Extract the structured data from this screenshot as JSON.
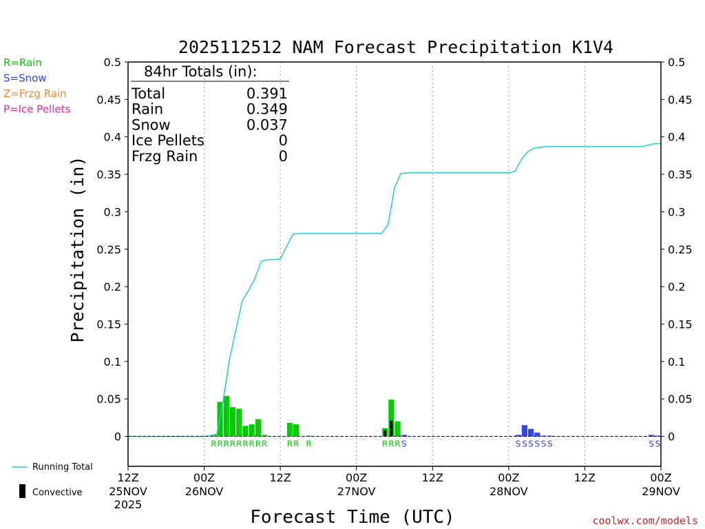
{
  "chart_data": {
    "type": "bar",
    "title": "2025112512 NAM Forecast Precipitation K1V4",
    "xlabel": "Forecast Time (UTC)",
    "ylabel": "Precipitation (in)",
    "ylim": [
      -0.04,
      0.5
    ],
    "xlim_hours": [
      0,
      84
    ],
    "y_ticks": [
      "0",
      "0.05",
      "0.1",
      "0.15",
      "0.2",
      "0.25",
      "0.3",
      "0.35",
      "0.4",
      "0.45",
      "0.5"
    ],
    "x_ticks": [
      {
        "hour": 0,
        "time": "12Z",
        "date": "25NOV",
        "year": "2025"
      },
      {
        "hour": 12,
        "time": "00Z",
        "date": "26NOV",
        "year": ""
      },
      {
        "hour": 24,
        "time": "12Z",
        "date": "",
        "year": ""
      },
      {
        "hour": 36,
        "time": "00Z",
        "date": "27NOV",
        "year": ""
      },
      {
        "hour": 48,
        "time": "12Z",
        "date": "",
        "year": ""
      },
      {
        "hour": 60,
        "time": "00Z",
        "date": "28NOV",
        "year": ""
      },
      {
        "hour": 72,
        "time": "12Z",
        "date": "",
        "year": ""
      },
      {
        "hour": 84,
        "time": "00Z",
        "date": "29NOV",
        "year": ""
      }
    ],
    "legend_types": [
      {
        "label": "R=Rain",
        "color": "#00cc00"
      },
      {
        "label": "S=Snow",
        "color": "#3344ee"
      },
      {
        "label": "Z=Frzg Rain",
        "color": "#ee8833"
      },
      {
        "label": "P=Ice Pellets",
        "color": "#ee2299"
      }
    ],
    "legend_bottom": {
      "running_total": "Running Total",
      "convective": "Convective"
    },
    "totals": {
      "header": "84hr Totals (in):",
      "rows": [
        {
          "label": "Total",
          "value": "0.391"
        },
        {
          "label": "Rain",
          "value": "0.349"
        },
        {
          "label": "Snow",
          "value": "0.037"
        },
        {
          "label": "Ice Pellets",
          "value": "0"
        },
        {
          "label": "Frzg Rain",
          "value": "0"
        }
      ]
    },
    "bars": [
      {
        "hour": 13.5,
        "value": 0.002,
        "type": "rain",
        "label": "R"
      },
      {
        "hour": 14.5,
        "value": 0.046,
        "type": "rain",
        "label": "R"
      },
      {
        "hour": 15.5,
        "value": 0.054,
        "type": "rain",
        "label": "R"
      },
      {
        "hour": 16.5,
        "value": 0.039,
        "type": "rain",
        "label": "R"
      },
      {
        "hour": 17.5,
        "value": 0.037,
        "type": "rain",
        "label": "R"
      },
      {
        "hour": 18.5,
        "value": 0.014,
        "type": "rain",
        "label": "R"
      },
      {
        "hour": 19.5,
        "value": 0.016,
        "type": "rain",
        "label": "R"
      },
      {
        "hour": 20.5,
        "value": 0.023,
        "type": "rain",
        "label": "R"
      },
      {
        "hour": 21.5,
        "value": 0.002,
        "type": "rain",
        "label": "R"
      },
      {
        "hour": 25.5,
        "value": 0.018,
        "type": "rain",
        "label": "R"
      },
      {
        "hour": 26.5,
        "value": 0.016,
        "type": "rain",
        "label": "R"
      },
      {
        "hour": 28.5,
        "value": 0.001,
        "type": "rain",
        "label": "R"
      },
      {
        "hour": 40.5,
        "value": 0.011,
        "type": "rain",
        "label": "R"
      },
      {
        "hour": 41.5,
        "value": 0.049,
        "type": "rain",
        "label": "R"
      },
      {
        "hour": 42.5,
        "value": 0.02,
        "type": "rain",
        "label": "R"
      },
      {
        "hour": 43.5,
        "value": 0.002,
        "type": "snow",
        "label": "S"
      },
      {
        "hour": 61.5,
        "value": 0.002,
        "type": "snow",
        "label": "S"
      },
      {
        "hour": 62.5,
        "value": 0.015,
        "type": "snow",
        "label": "S"
      },
      {
        "hour": 63.5,
        "value": 0.01,
        "type": "snow",
        "label": "S"
      },
      {
        "hour": 64.5,
        "value": 0.005,
        "type": "snow",
        "label": "S"
      },
      {
        "hour": 65.5,
        "value": 0.001,
        "type": "snow",
        "label": "S"
      },
      {
        "hour": 66.5,
        "value": 0.001,
        "type": "snow",
        "label": "S"
      },
      {
        "hour": 82.5,
        "value": 0.002,
        "type": "snow",
        "label": "S"
      },
      {
        "hour": 83.5,
        "value": 0.001,
        "type": "snow",
        "label": "S"
      }
    ],
    "convective": [
      {
        "hour": 40.5,
        "value": 0.008
      },
      {
        "hour": 41.5,
        "value": 0.021
      }
    ],
    "running_total": {
      "hours": [
        0,
        12,
        13,
        14,
        15,
        16,
        17,
        18,
        19,
        20,
        21,
        22,
        23,
        24,
        25,
        26,
        27,
        28,
        30,
        36,
        40,
        41,
        42,
        43,
        44,
        48,
        54,
        60,
        61,
        62,
        63,
        64,
        65,
        66,
        72,
        78,
        81,
        82,
        83,
        84
      ],
      "values": [
        0,
        0,
        0.001,
        0.003,
        0.049,
        0.103,
        0.142,
        0.181,
        0.195,
        0.211,
        0.234,
        0.236,
        0.236,
        0.237,
        0.254,
        0.27,
        0.271,
        0.271,
        0.271,
        0.271,
        0.271,
        0.283,
        0.332,
        0.351,
        0.352,
        0.352,
        0.352,
        0.352,
        0.354,
        0.37,
        0.38,
        0.385,
        0.386,
        0.387,
        0.387,
        0.387,
        0.387,
        0.389,
        0.391,
        0.391
      ]
    },
    "colors": {
      "rain": "#00cc00",
      "snow": "#3344ee",
      "convective": "#000000",
      "running_total": "#22cccc",
      "grid": "#999999"
    },
    "watermark": "coolwx.com/models"
  }
}
